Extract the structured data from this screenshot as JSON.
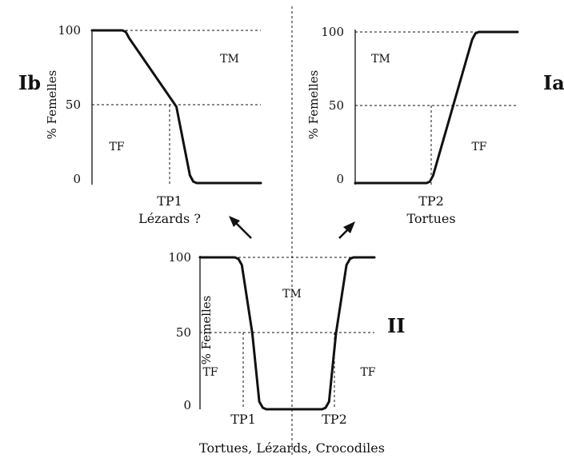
{
  "chart_data": [
    {
      "panel_label": "Ib",
      "type": "line",
      "ylabel": "% Femelles",
      "ylim": [
        0,
        100
      ],
      "yticks": [
        0,
        50,
        100
      ],
      "grid": "dashed lines at 50 and 100",
      "x": [
        0,
        0.1,
        0.18,
        0.2,
        0.22,
        0.5,
        0.58,
        0.6,
        0.62,
        0.8,
        1.0
      ],
      "y": [
        100,
        100,
        100,
        99,
        95,
        50,
        5,
        1,
        0,
        0,
        0
      ],
      "pivots": [
        {
          "label": "TP1",
          "x": 0.5
        }
      ],
      "regions": [
        {
          "label": "TM"
        },
        {
          "label": "TF"
        }
      ],
      "caption": "Lézards ?"
    },
    {
      "panel_label": "Ia",
      "type": "line",
      "ylabel": "% Femelles",
      "ylim": [
        0,
        100
      ],
      "yticks": [
        0,
        50,
        100
      ],
      "grid": "dashed lines at 50 and 100",
      "x": [
        0,
        0.2,
        0.44,
        0.46,
        0.48,
        0.6,
        0.72,
        0.74,
        0.76,
        0.9,
        1.0
      ],
      "y": [
        0,
        0,
        0,
        1,
        5,
        50,
        95,
        99,
        100,
        100,
        100
      ],
      "pivots": [
        {
          "label": "TP2",
          "x": 0.6
        }
      ],
      "regions": [
        {
          "label": "TM"
        },
        {
          "label": "TF"
        }
      ],
      "caption": "Tortues"
    },
    {
      "panel_label": "II",
      "type": "line",
      "ylabel": "% Femelles",
      "ylim": [
        0,
        100
      ],
      "yticks": [
        0,
        50,
        100
      ],
      "grid": "dashed lines at 50 and 100",
      "x": [
        0,
        0.2,
        0.22,
        0.24,
        0.3,
        0.34,
        0.36,
        0.38,
        0.7,
        0.72,
        0.74,
        0.78,
        0.84,
        0.86,
        0.88,
        1.0
      ],
      "y": [
        100,
        100,
        99,
        95,
        50,
        5,
        1,
        0,
        0,
        1,
        5,
        50,
        95,
        99,
        100,
        100
      ],
      "pivots": [
        {
          "label": "TP1",
          "x": 0.3
        },
        {
          "label": "TP2",
          "x": 0.78
        }
      ],
      "regions": [
        {
          "label": "TF"
        },
        {
          "label": "TM"
        },
        {
          "label": "TF"
        }
      ],
      "caption": "Tortues, Lézards, Crocodiles"
    }
  ]
}
